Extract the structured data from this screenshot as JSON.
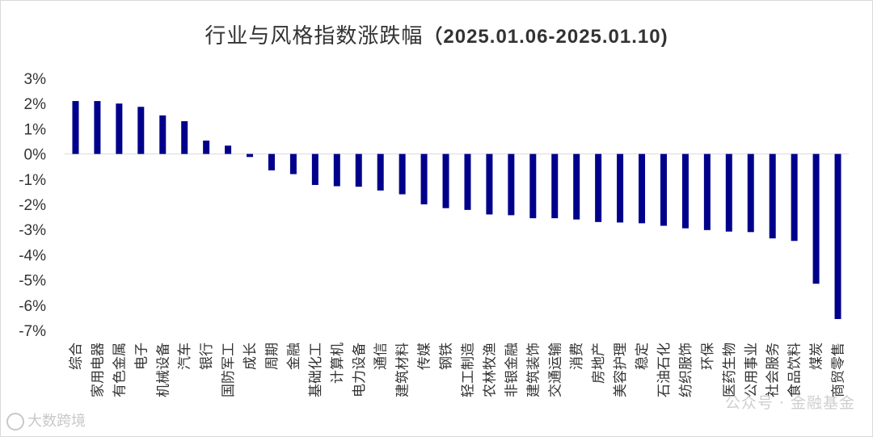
{
  "chart_data": {
    "type": "bar",
    "title": "行业与风格指数涨跌幅",
    "title_range": "（2025.01.06-2025.01.10)",
    "categories": [
      "综合",
      "家用电器",
      "有色金属",
      "电子",
      "机械设备",
      "汽车",
      "银行",
      "国防军工",
      "成长",
      "周期",
      "金融",
      "基础化工",
      "计算机",
      "电力设备",
      "通信",
      "建筑材料",
      "传媒",
      "钢铁",
      "轻工制造",
      "农林牧渔",
      "非银金融",
      "建筑装饰",
      "交通运输",
      "消费",
      "房地产",
      "美容护理",
      "稳定",
      "石油石化",
      "纺织服饰",
      "环保",
      "医药生物",
      "公用事业",
      "社会服务",
      "食品饮料",
      "煤炭",
      "商贸零售"
    ],
    "values": [
      2.1,
      2.1,
      2.0,
      1.87,
      1.53,
      1.3,
      0.53,
      0.33,
      -0.12,
      -0.65,
      -0.8,
      -1.23,
      -1.28,
      -1.3,
      -1.45,
      -1.6,
      -2.0,
      -2.15,
      -2.22,
      -2.4,
      -2.43,
      -2.55,
      -2.55,
      -2.6,
      -2.7,
      -2.72,
      -2.75,
      -2.85,
      -2.95,
      -3.02,
      -3.08,
      -3.1,
      -3.35,
      -3.45,
      -5.15,
      -6.55
    ],
    "yticks": [
      "3%",
      "2%",
      "1%",
      "0%",
      "-1%",
      "-2%",
      "-3%",
      "-4%",
      "-5%",
      "-6%",
      "-7%"
    ],
    "ylim": [
      -7,
      3
    ],
    "grid": false,
    "bar_color": "#00008B"
  },
  "watermarks": {
    "left": "大数跨境",
    "right": "公众号 · 金融基金"
  }
}
